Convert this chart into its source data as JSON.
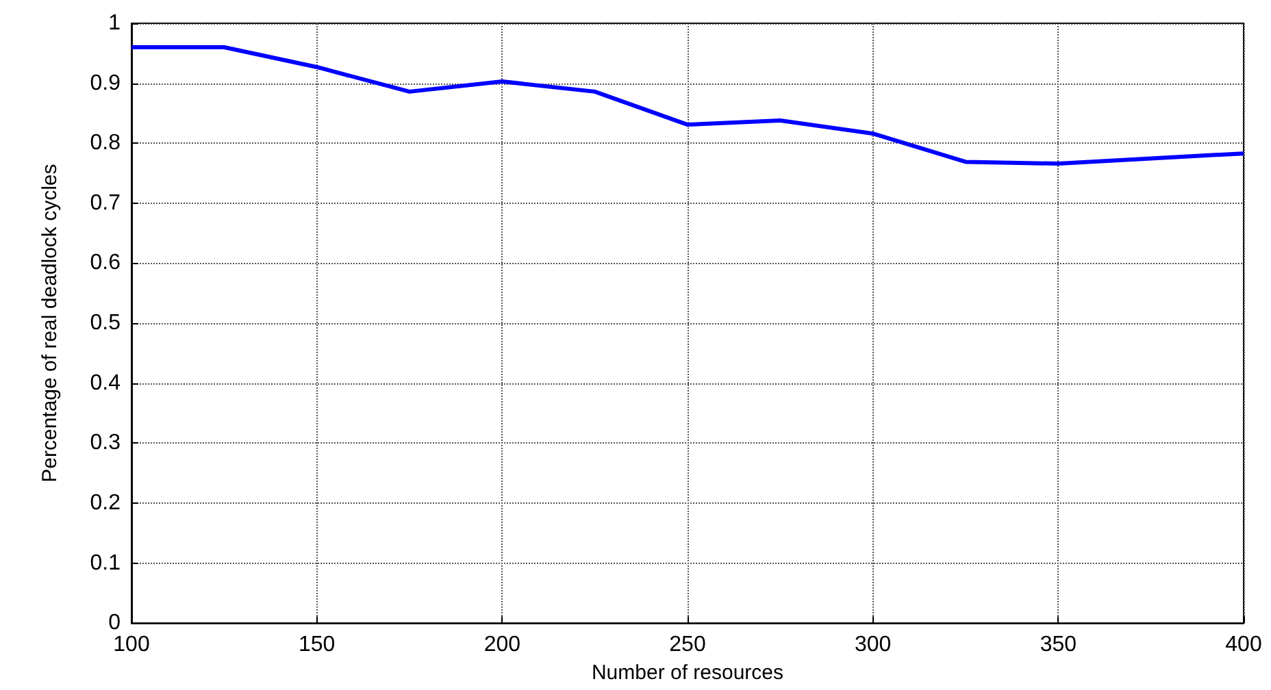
{
  "chart_data": {
    "type": "line",
    "xlabel": "Number of resources",
    "ylabel": "Percentage of real deadlock cycles",
    "x": [
      100,
      125,
      150,
      175,
      200,
      225,
      250,
      275,
      300,
      325,
      350,
      400
    ],
    "series": [
      {
        "color": "#0000ff",
        "values": [
          0.96,
          0.96,
          0.927,
          0.886,
          0.903,
          0.886,
          0.831,
          0.838,
          0.816,
          0.769,
          0.766,
          0.783
        ]
      }
    ],
    "xlim": [
      100,
      400
    ],
    "xticks": [
      100,
      150,
      200,
      250,
      300,
      350,
      400
    ],
    "ylim": [
      0,
      1
    ],
    "yticks": [
      0,
      0.1,
      0.2,
      0.3,
      0.4,
      0.5,
      0.6,
      0.7,
      0.8,
      0.9,
      1
    ],
    "grid": true,
    "marker": "none",
    "line_style": "solid"
  }
}
